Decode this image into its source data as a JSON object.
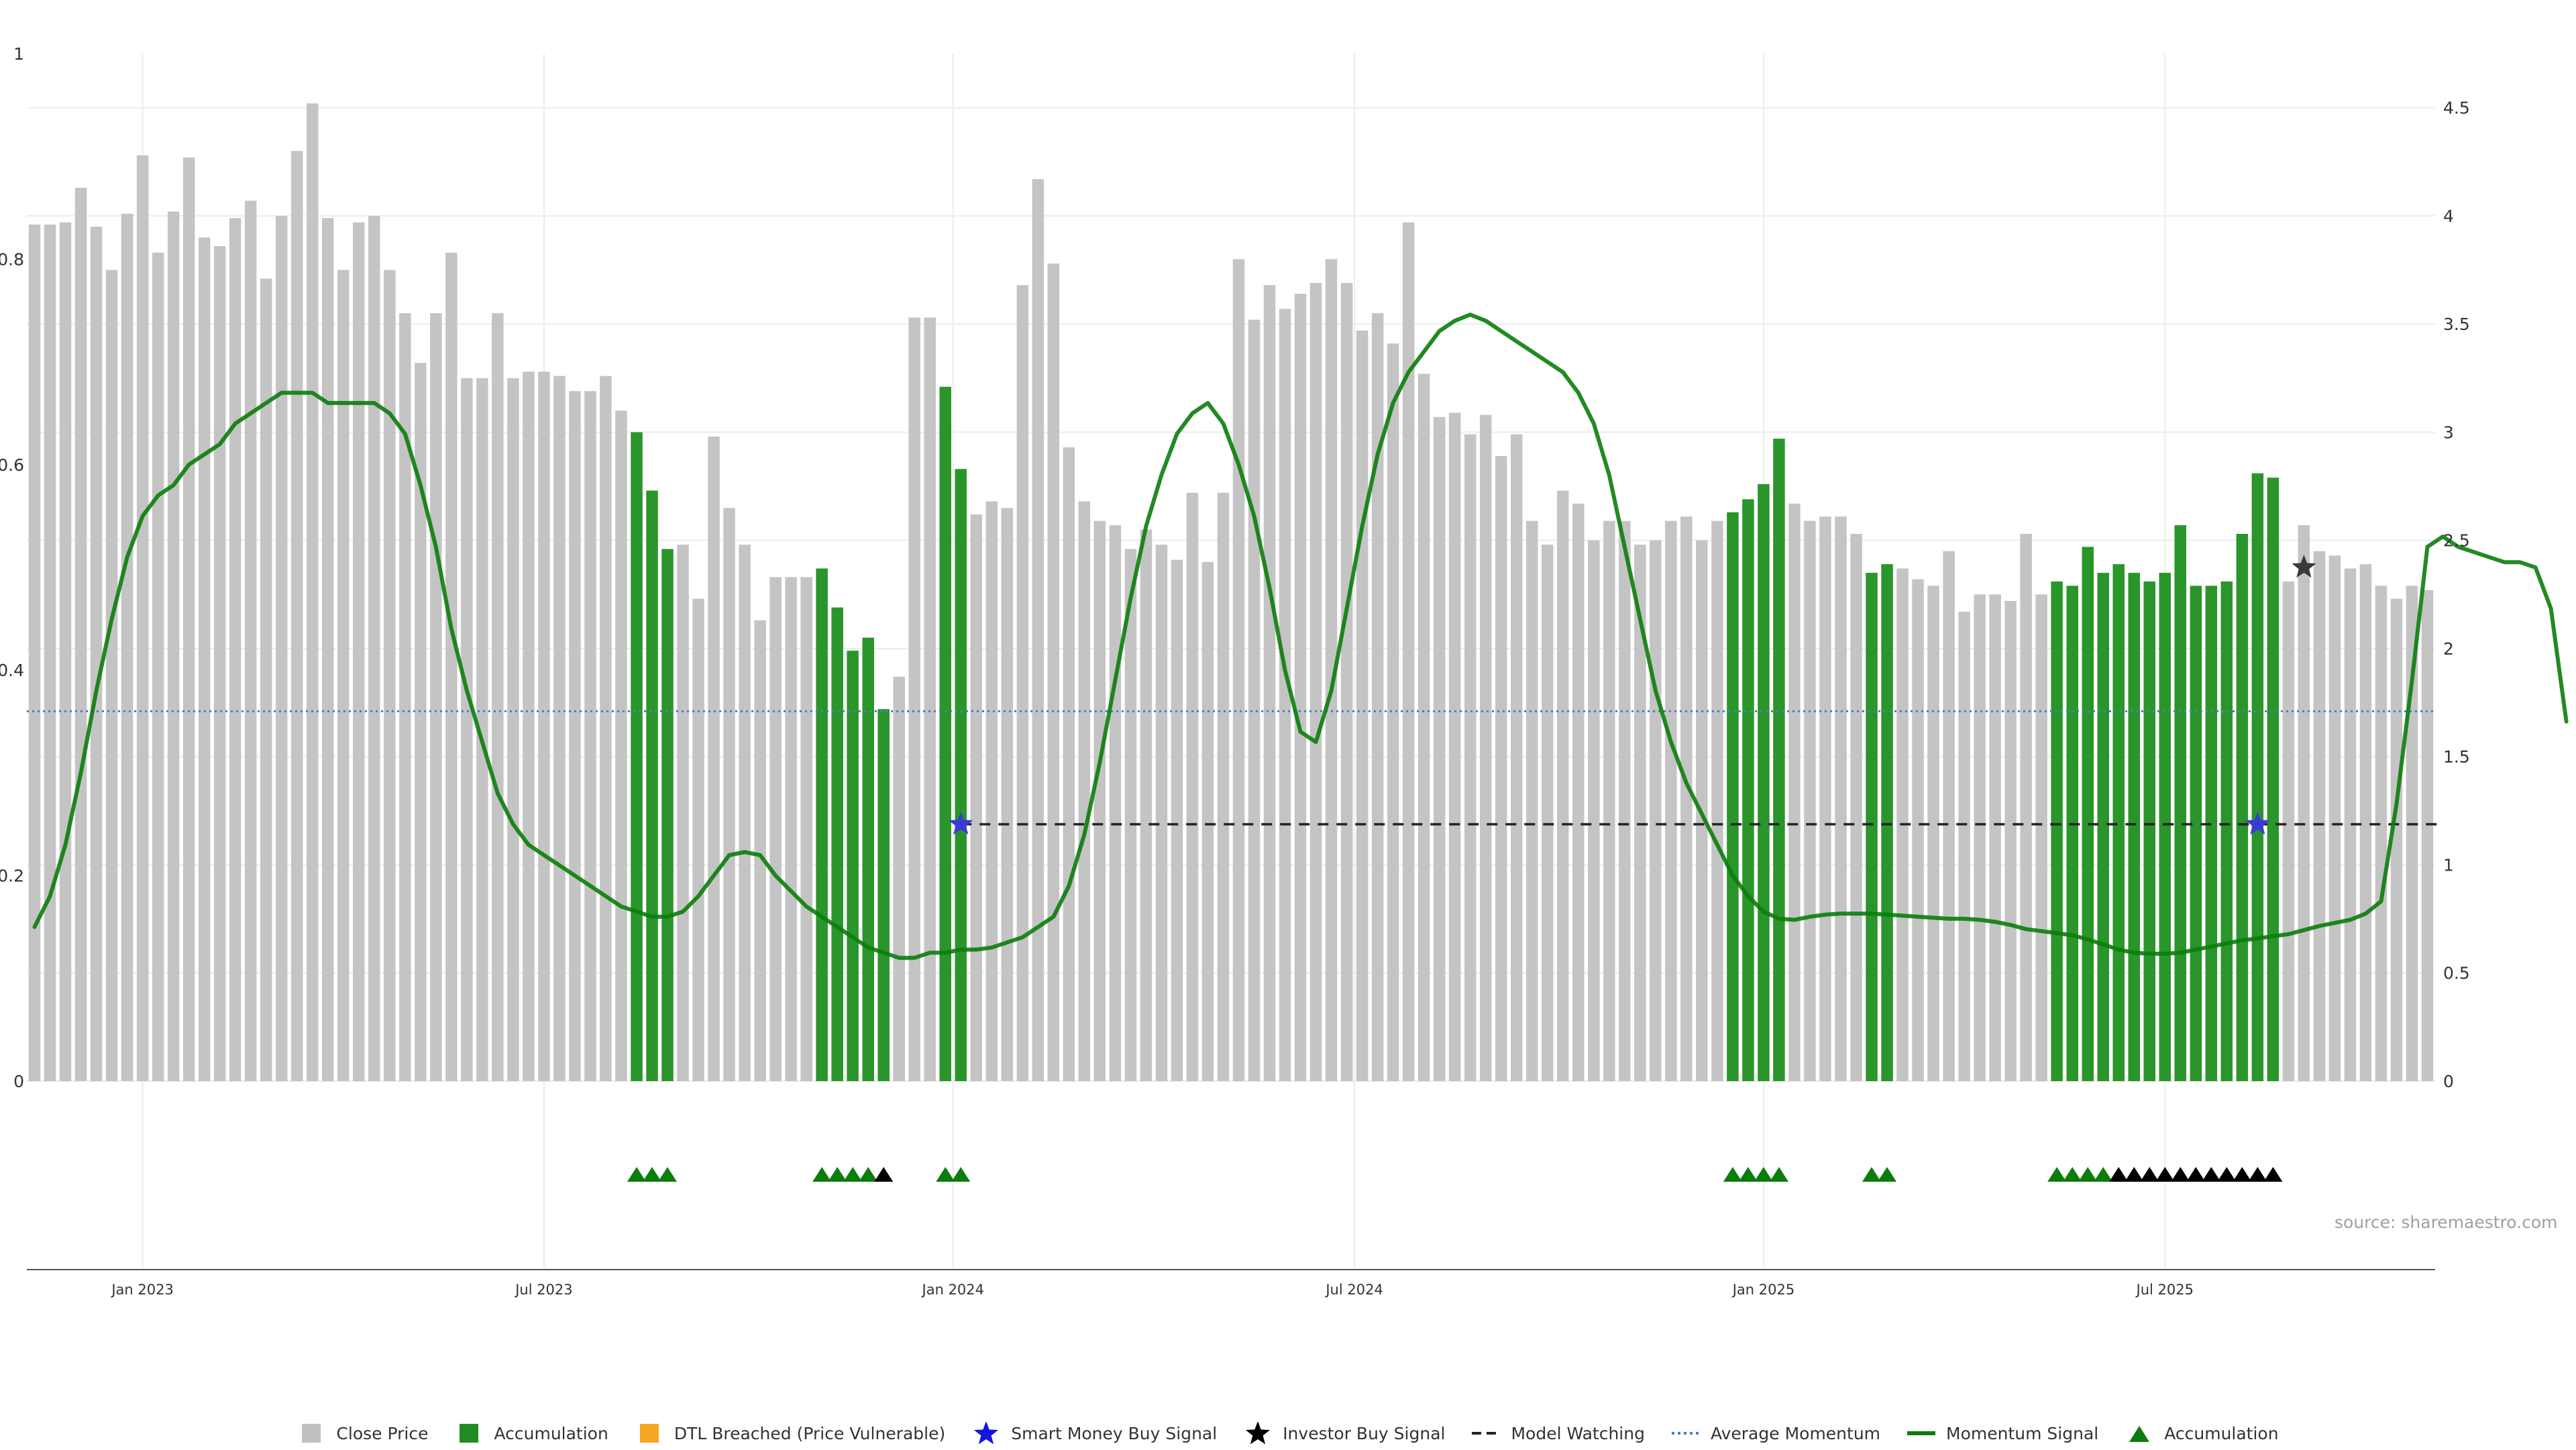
{
  "chart_data": {
    "type": "bar",
    "source_label": "source: sharemaestro.com",
    "left_axis": {
      "ylim": [
        0,
        1
      ],
      "ticks": [
        "0",
        "0.2",
        "0.4",
        "0.6",
        "0.8",
        "1"
      ]
    },
    "right_axis": {
      "ylim": [
        0,
        4.75
      ],
      "ticks": [
        "0",
        "0.5",
        "1",
        "1.5",
        "2",
        "2.5",
        "3",
        "3.5",
        "4",
        "4.5"
      ]
    },
    "x_axis": {
      "ticks": [
        {
          "index": 7,
          "label": "Jan 2023"
        },
        {
          "index": 33,
          "label": "Jul 2023"
        },
        {
          "index": 59.5,
          "label": "Jan 2024"
        },
        {
          "index": 85.5,
          "label": "Jul 2024"
        },
        {
          "index": 112,
          "label": "Jan 2025"
        },
        {
          "index": 138,
          "label": "Jul 2025"
        }
      ]
    },
    "legend": [
      {
        "label": "Close Price",
        "kind": "square",
        "color": "#c0c0c0"
      },
      {
        "label": "Accumulation",
        "kind": "square",
        "color": "#228b22"
      },
      {
        "label": "DTL Breached (Price Vulnerable)",
        "kind": "square",
        "color": "#f5a623"
      },
      {
        "label": "Smart Money Buy Signal",
        "kind": "star",
        "color": "#1515e0"
      },
      {
        "label": "Investor Buy Signal",
        "kind": "star",
        "color": "#000000"
      },
      {
        "label": "Model Watching",
        "kind": "dash",
        "color": "#222222"
      },
      {
        "label": "Average Momentum",
        "kind": "dot",
        "color": "#4a7fbf"
      },
      {
        "label": "Momentum Signal",
        "kind": "line",
        "color": "#0b7d0b"
      },
      {
        "label": "Accumulation",
        "kind": "triangle",
        "color": "#0b7d0b"
      }
    ],
    "close_price": [
      3.96,
      3.96,
      3.97,
      4.13,
      3.95,
      3.75,
      4.01,
      4.28,
      3.83,
      4.02,
      4.27,
      3.9,
      3.86,
      3.99,
      4.07,
      3.71,
      4.0,
      4.3,
      4.52,
      3.99,
      3.75,
      3.97,
      4.0,
      3.75,
      3.55,
      3.32,
      3.55,
      3.83,
      3.25,
      3.25,
      3.55,
      3.25,
      3.28,
      3.28,
      3.26,
      3.19,
      3.19,
      3.26,
      3.1,
      3.0,
      2.73,
      2.46,
      2.48,
      2.23,
      2.98,
      2.65,
      2.48,
      2.13,
      2.33,
      2.33,
      2.33,
      2.37,
      2.19,
      1.99,
      2.05,
      1.72,
      1.87,
      3.53,
      3.53,
      3.21,
      2.83,
      2.62,
      2.68,
      2.65,
      3.68,
      4.17,
      3.78,
      2.93,
      2.68,
      2.59,
      2.57,
      2.46,
      2.55,
      2.48,
      2.41,
      2.72,
      2.4,
      2.72,
      3.8,
      3.52,
      3.68,
      3.57,
      3.64,
      3.69,
      3.8,
      3.69,
      3.47,
      3.55,
      3.41,
      3.97,
      3.27,
      3.07,
      3.09,
      2.99,
      3.08,
      2.89,
      2.99,
      2.59,
      2.48,
      2.73,
      2.67,
      2.5,
      2.59,
      2.59,
      2.48,
      2.5,
      2.59,
      2.61,
      2.5,
      2.59,
      2.63,
      2.69,
      2.76,
      2.97,
      2.67,
      2.59,
      2.61,
      2.61,
      2.53,
      2.35,
      2.39,
      2.37,
      2.32,
      2.29,
      2.45,
      2.17,
      2.25,
      2.25,
      2.22,
      2.53,
      2.25,
      2.31,
      2.29,
      2.47,
      2.35,
      2.39,
      2.35,
      2.31,
      2.35,
      2.57,
      2.29,
      2.29,
      2.31,
      2.53,
      2.81,
      2.79,
      2.31,
      2.57,
      2.45,
      2.43,
      2.37,
      2.39,
      2.29,
      2.23,
      2.29,
      2.27
    ],
    "accumulation_bars": [
      39,
      40,
      41,
      51,
      52,
      53,
      54,
      55,
      59,
      60,
      110,
      111,
      112,
      113,
      119,
      120,
      131,
      132,
      133,
      134,
      135,
      136,
      137,
      138,
      139,
      140,
      141,
      142,
      143,
      144,
      145
    ],
    "momentum_signal": [
      0.15,
      0.18,
      0.23,
      0.3,
      0.38,
      0.45,
      0.51,
      0.55,
      0.57,
      0.58,
      0.6,
      0.61,
      0.62,
      0.64,
      0.65,
      0.66,
      0.67,
      0.67,
      0.67,
      0.66,
      0.66,
      0.66,
      0.66,
      0.65,
      0.63,
      0.58,
      0.52,
      0.44,
      0.38,
      0.33,
      0.28,
      0.25,
      0.23,
      0.22,
      0.21,
      0.2,
      0.19,
      0.18,
      0.17,
      0.165,
      0.16,
      0.16,
      0.165,
      0.18,
      0.2,
      0.22,
      0.223,
      0.22,
      0.2,
      0.185,
      0.17,
      0.16,
      0.15,
      0.14,
      0.13,
      0.125,
      0.12,
      0.12,
      0.125,
      0.125,
      0.128,
      0.128,
      0.13,
      0.135,
      0.14,
      0.15,
      0.16,
      0.19,
      0.24,
      0.31,
      0.39,
      0.47,
      0.54,
      0.59,
      0.63,
      0.65,
      0.66,
      0.64,
      0.6,
      0.55,
      0.48,
      0.4,
      0.34,
      0.33,
      0.38,
      0.46,
      0.54,
      0.61,
      0.66,
      0.69,
      0.71,
      0.73,
      0.74,
      0.746,
      0.74,
      0.73,
      0.72,
      0.71,
      0.7,
      0.69,
      0.67,
      0.64,
      0.59,
      0.52,
      0.45,
      0.38,
      0.33,
      0.29,
      0.26,
      0.23,
      0.2,
      0.18,
      0.165,
      0.158,
      0.157,
      0.16,
      0.162,
      0.163,
      0.163,
      0.163,
      0.162,
      0.161,
      0.16,
      0.159,
      0.158,
      0.158,
      0.157,
      0.155,
      0.152,
      0.148,
      0.146,
      0.144,
      0.142,
      0.138,
      0.133,
      0.128,
      0.125,
      0.124,
      0.124,
      0.125,
      0.128,
      0.131,
      0.134,
      0.137,
      0.139,
      0.141,
      0.143,
      0.147,
      0.151,
      0.154,
      0.157,
      0.163,
      0.175,
      0.27,
      0.39,
      0.52,
      0.53,
      0.52,
      0.515,
      0.51,
      0.505,
      0.505,
      0.5,
      0.46,
      0.35
    ],
    "average_momentum": 0.36,
    "model_watching": {
      "value": 0.25,
      "from_index": 60,
      "to_index": 156
    },
    "smart_money_buy_signals": [
      {
        "index": 60,
        "value": 0.25
      },
      {
        "index": 144,
        "value": 0.25
      }
    ],
    "investor_buy_signals": [
      {
        "index": 147,
        "value": 0.5
      }
    ],
    "accumulation_markers_green": [
      39,
      40,
      41,
      51,
      52,
      53,
      54,
      59,
      60,
      110,
      111,
      112,
      113,
      119,
      120,
      131,
      132,
      133,
      134
    ],
    "accumulation_markers_black": [
      55,
      135,
      136,
      137,
      138,
      139,
      140,
      141,
      142,
      143,
      144,
      145
    ]
  }
}
